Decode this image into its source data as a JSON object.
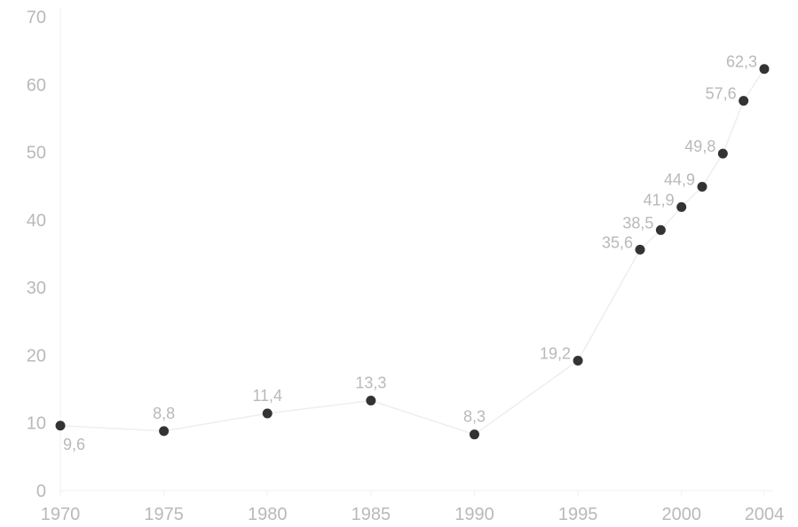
{
  "chart_data": {
    "type": "line",
    "title": "",
    "xlabel": "",
    "ylabel": "",
    "ylim": [
      0,
      70
    ],
    "xlim": [
      1970,
      2004
    ],
    "yticks": [
      "0",
      "10",
      "20",
      "30",
      "40",
      "50",
      "60",
      "70"
    ],
    "xticks": [
      "1970",
      "1975",
      "1980",
      "1985",
      "1990",
      "1995",
      "2000",
      "2004"
    ],
    "grid": false,
    "colors": {
      "point": "#333333",
      "line": "#eeeeee",
      "text": "#b9b9b9"
    },
    "points": [
      {
        "x": 1970,
        "y": 9.6,
        "label": "9,6"
      },
      {
        "x": 1975,
        "y": 8.8,
        "label": "8,8"
      },
      {
        "x": 1980,
        "y": 11.4,
        "label": "11,4"
      },
      {
        "x": 1985,
        "y": 13.3,
        "label": "13,3"
      },
      {
        "x": 1990,
        "y": 8.3,
        "label": "8,3"
      },
      {
        "x": 1995,
        "y": 19.2,
        "label": "19,2"
      },
      {
        "x": 1998,
        "y": 35.6,
        "label": "35,6"
      },
      {
        "x": 1999,
        "y": 38.5,
        "label": "38,5"
      },
      {
        "x": 2000,
        "y": 41.9,
        "label": "41,9"
      },
      {
        "x": 2001,
        "y": 44.9,
        "label": "44,9"
      },
      {
        "x": 2002,
        "y": 49.8,
        "label": "49,8"
      },
      {
        "x": 2003,
        "y": 57.6,
        "label": "57,6"
      },
      {
        "x": 2004,
        "y": 62.3,
        "label": "62,3"
      }
    ]
  }
}
